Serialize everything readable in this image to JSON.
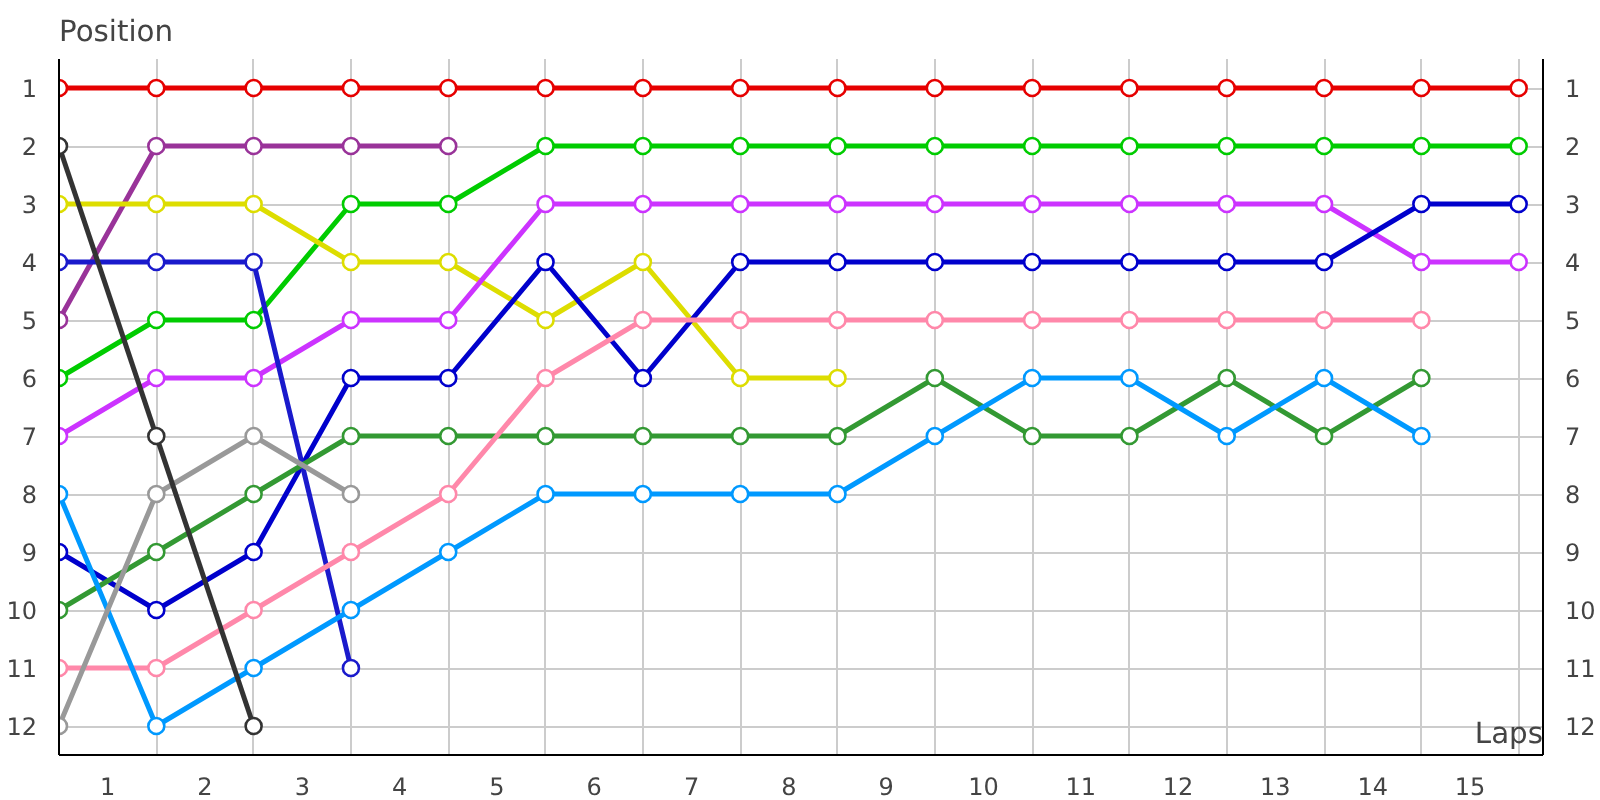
{
  "chart_data": {
    "type": "line",
    "xlabel": "Laps",
    "ylabel": "Position",
    "x": [
      0,
      1,
      2,
      3,
      4,
      5,
      6,
      7,
      8,
      9,
      10,
      11,
      12,
      13,
      14,
      15
    ],
    "xlim": [
      0,
      15.25
    ],
    "ylim": [
      12.5,
      0.5
    ],
    "y2lim": [
      12.5,
      0.5
    ],
    "xticks": [
      {
        "value": 0,
        "label": null
      },
      {
        "value": 0.5,
        "label": "1"
      },
      {
        "value": 1,
        "label": null
      },
      {
        "value": 1.5,
        "label": "2"
      },
      {
        "value": 2,
        "label": null
      },
      {
        "value": 2.5,
        "label": "3"
      },
      {
        "value": 3,
        "label": null
      },
      {
        "value": 3.5,
        "label": "4"
      },
      {
        "value": 4,
        "label": null
      },
      {
        "value": 4.5,
        "label": "5"
      },
      {
        "value": 5,
        "label": null
      },
      {
        "value": 5.5,
        "label": "6"
      },
      {
        "value": 6,
        "label": null
      },
      {
        "value": 6.5,
        "label": "7"
      },
      {
        "value": 7,
        "label": null
      },
      {
        "value": 7.5,
        "label": "8"
      },
      {
        "value": 8,
        "label": null
      },
      {
        "value": 8.5,
        "label": "9"
      },
      {
        "value": 9,
        "label": null
      },
      {
        "value": 9.5,
        "label": "10"
      },
      {
        "value": 10,
        "label": null
      },
      {
        "value": 10.5,
        "label": "11"
      },
      {
        "value": 11,
        "label": null
      },
      {
        "value": 11.5,
        "label": "12"
      },
      {
        "value": 12,
        "label": null
      },
      {
        "value": 12.5,
        "label": "13"
      },
      {
        "value": 13,
        "label": null
      },
      {
        "value": 13.5,
        "label": "14"
      },
      {
        "value": 14,
        "label": null
      },
      {
        "value": 14.5,
        "label": "15"
      },
      {
        "value": 15,
        "label": null
      }
    ],
    "yticks": [
      1,
      2,
      3,
      4,
      5,
      6,
      7,
      8,
      9,
      10,
      11,
      12
    ],
    "y2ticks": [
      1,
      2,
      3,
      4,
      5,
      6,
      7,
      8,
      9,
      10,
      11,
      12
    ],
    "grid": true,
    "marker": "circle",
    "line_style": "solid",
    "series": [
      {
        "color": "#e60000",
        "values": [
          1,
          1,
          1,
          1,
          1,
          1,
          1,
          1,
          1,
          1,
          1,
          1,
          1,
          1,
          1,
          1
        ]
      },
      {
        "color": "#00cc00",
        "values": [
          6,
          5,
          5,
          3,
          3,
          2,
          2,
          2,
          2,
          2,
          2,
          2,
          2,
          2,
          2,
          2
        ]
      },
      {
        "color": "#993399",
        "values": [
          5,
          2,
          2,
          2,
          2,
          null,
          null,
          null,
          null,
          null,
          null,
          null,
          null,
          null,
          null,
          null
        ]
      },
      {
        "color": "#dddd00",
        "values": [
          3,
          3,
          3,
          4,
          4,
          5,
          4,
          6,
          6,
          null,
          null,
          null,
          null,
          null,
          null,
          null
        ]
      },
      {
        "color": "#cc33ff",
        "values": [
          7,
          6,
          6,
          5,
          5,
          3,
          3,
          3,
          3,
          3,
          3,
          3,
          3,
          3,
          4,
          4
        ]
      },
      {
        "color": "#0000cc",
        "values": [
          9,
          10,
          9,
          6,
          6,
          4,
          6,
          4,
          4,
          4,
          4,
          4,
          4,
          4,
          3,
          3
        ]
      },
      {
        "color": "#1a1acc",
        "values": [
          4,
          4,
          4,
          11,
          null,
          null,
          null,
          null,
          null,
          null,
          null,
          null,
          null,
          null,
          null,
          null
        ]
      },
      {
        "color": "#339933",
        "values": [
          10,
          9,
          8,
          7,
          7,
          7,
          7,
          7,
          7,
          6,
          7,
          7,
          6,
          7,
          6,
          null
        ]
      },
      {
        "color": "#ff88aa",
        "values": [
          11,
          11,
          10,
          9,
          8,
          6,
          5,
          5,
          5,
          5,
          5,
          5,
          5,
          5,
          5,
          null
        ]
      },
      {
        "color": "#0099ff",
        "values": [
          8,
          12,
          11,
          10,
          9,
          8,
          8,
          8,
          8,
          7,
          6,
          6,
          7,
          6,
          7,
          null
        ]
      },
      {
        "color": "#999999",
        "values": [
          12,
          8,
          7,
          8,
          null,
          null,
          null,
          null,
          null,
          null,
          null,
          null,
          null,
          null,
          null,
          null
        ]
      },
      {
        "color": "#333333",
        "values": [
          2,
          7,
          12,
          null,
          null,
          null,
          null,
          null,
          null,
          null,
          null,
          null,
          null,
          null,
          null,
          null
        ]
      }
    ]
  }
}
